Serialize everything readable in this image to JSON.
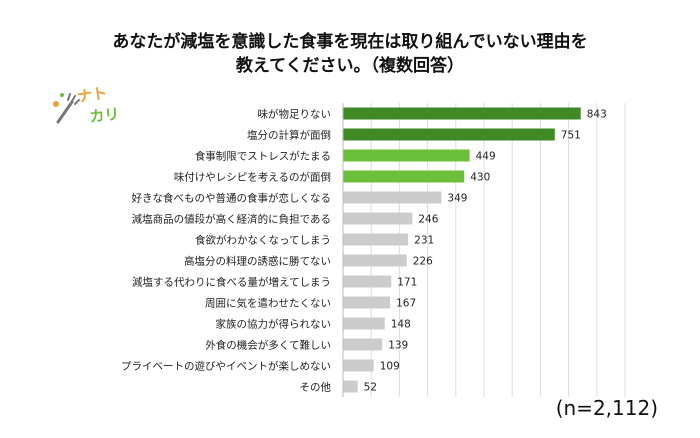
{
  "logo_text": "ナトカリ",
  "chart_data": {
    "type": "bar",
    "orientation": "horizontal",
    "title": "あなたが減塩を意識した食事を現在は取り組んでいない理由を教えてください。（複数回答）",
    "title_lines": [
      "あなたが減塩を意識した食事を現在は取り組んでいない理由を",
      "教えてください。（複数回答）"
    ],
    "sample_size": "(n=2,112)",
    "categories": [
      "味が物足りない",
      "塩分の計算が面倒",
      "食事制限でストレスがたまる",
      "味付けやレシピを考えるのが面倒",
      "好きな食べものや普通の食事が恋しくなる",
      "減塩商品の値段が高く経済的に負担である",
      "食欲がわかなくなってしまう",
      "高塩分の料理の誘惑に勝てない",
      "減塩する代わりに食べる量が増えてしまう",
      "周囲に気を遣わせたくない",
      "家族の協力が得られない",
      "外食の機会が多くて難しい",
      "プライベートの遊びやイベントが楽しめない",
      "その他"
    ],
    "values": [
      843,
      751,
      449,
      430,
      349,
      246,
      231,
      226,
      171,
      167,
      148,
      139,
      109,
      52
    ],
    "value_labels": [
      "843",
      "751",
      "449",
      "430",
      "349",
      "246",
      "231",
      "226",
      "171",
      "167",
      "148",
      "139",
      "109",
      "52"
    ],
    "xlim": [
      0,
      1000
    ],
    "grid": true,
    "legend": "none",
    "colors": {
      "dark_green": "#3f8a25",
      "light_green": "#6cbf3a",
      "gray": "#cccccc",
      "grid": "#dddddd"
    },
    "bar_color_keys": [
      "dark_green",
      "dark_green",
      "light_green",
      "light_green",
      "gray",
      "gray",
      "gray",
      "gray",
      "gray",
      "gray",
      "gray",
      "gray",
      "gray",
      "gray"
    ]
  }
}
